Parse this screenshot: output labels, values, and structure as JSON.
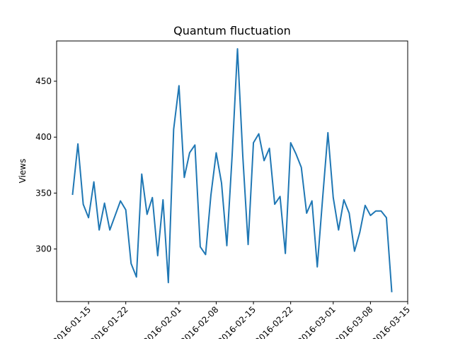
{
  "chart_data": {
    "type": "line",
    "title": "Quantum fluctuation",
    "xlabel": "",
    "ylabel": "Views",
    "x_tick_labels": [
      "2016-01-15",
      "2016-01-22",
      "2016-02-01",
      "2016-02-08",
      "2016-02-15",
      "2016-02-22",
      "2016-03-01",
      "2016-03-08",
      "2016-03-15"
    ],
    "y_ticks": [
      300,
      350,
      400,
      450
    ],
    "ylim": [
      253,
      486
    ],
    "xlim": [
      "2016-01-09",
      "2016-03-15"
    ],
    "grid": false,
    "color": "#1f77b4",
    "series": [
      {
        "name": "",
        "x": [
          "2016-01-12",
          "2016-01-13",
          "2016-01-14",
          "2016-01-15",
          "2016-01-16",
          "2016-01-17",
          "2016-01-18",
          "2016-01-19",
          "2016-01-20",
          "2016-01-21",
          "2016-01-22",
          "2016-01-23",
          "2016-01-24",
          "2016-01-25",
          "2016-01-26",
          "2016-01-27",
          "2016-01-28",
          "2016-01-29",
          "2016-01-30",
          "2016-01-31",
          "2016-02-01",
          "2016-02-02",
          "2016-02-03",
          "2016-02-04",
          "2016-02-05",
          "2016-02-06",
          "2016-02-07",
          "2016-02-08",
          "2016-02-09",
          "2016-02-10",
          "2016-02-11",
          "2016-02-12",
          "2016-02-13",
          "2016-02-14",
          "2016-02-15",
          "2016-02-16",
          "2016-02-17",
          "2016-02-18",
          "2016-02-19",
          "2016-02-20",
          "2016-02-21",
          "2016-02-22",
          "2016-02-23",
          "2016-02-24",
          "2016-02-25",
          "2016-02-26",
          "2016-02-27",
          "2016-02-28",
          "2016-02-29",
          "2016-03-01",
          "2016-03-02",
          "2016-03-03",
          "2016-03-04",
          "2016-03-05",
          "2016-03-06",
          "2016-03-07",
          "2016-03-08",
          "2016-03-09",
          "2016-03-10",
          "2016-03-11",
          "2016-03-12"
        ],
        "values": [
          349,
          394,
          340,
          328,
          360,
          317,
          341,
          317,
          330,
          343,
          335,
          287,
          275,
          367,
          331,
          346,
          294,
          344,
          270,
          407,
          446,
          364,
          386,
          393,
          302,
          295,
          348,
          386,
          359,
          303,
          384,
          479,
          383,
          304,
          395,
          403,
          379,
          390,
          340,
          347,
          296,
          395,
          385,
          373,
          332,
          343,
          284,
          345,
          404,
          346,
          317,
          344,
          332,
          298,
          315,
          339,
          330,
          334,
          334,
          328,
          262
        ]
      }
    ]
  }
}
